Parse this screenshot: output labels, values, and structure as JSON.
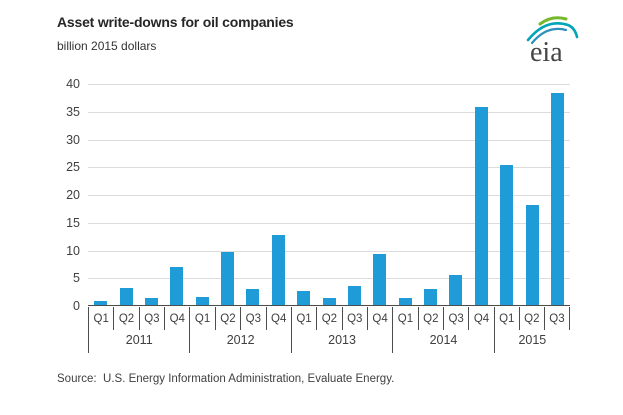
{
  "header": {
    "title": "Asset write-downs for oil companies",
    "subtitle": "billion 2015 dollars",
    "logo_text": "eia"
  },
  "chart_data": {
    "type": "bar",
    "title": "Asset write-downs for oil companies",
    "ylabel": "billion 2015 dollars",
    "xlabel": "",
    "ylim": [
      0,
      40
    ],
    "yticks": [
      0,
      5,
      10,
      15,
      20,
      25,
      30,
      35,
      40
    ],
    "grid": true,
    "legend_position": "none",
    "bar_color": "#1f9bd7",
    "groups": [
      {
        "year": "2011",
        "quarters": [
          "Q1",
          "Q2",
          "Q3",
          "Q4"
        ],
        "values": [
          0.8,
          3.1,
          1.3,
          6.8
        ]
      },
      {
        "year": "2012",
        "quarters": [
          "Q1",
          "Q2",
          "Q3",
          "Q4"
        ],
        "values": [
          1.4,
          9.5,
          2.9,
          12.7
        ]
      },
      {
        "year": "2013",
        "quarters": [
          "Q1",
          "Q2",
          "Q3",
          "Q4"
        ],
        "values": [
          2.5,
          1.3,
          3.5,
          9.2
        ]
      },
      {
        "year": "2014",
        "quarters": [
          "Q1",
          "Q2",
          "Q3",
          "Q4"
        ],
        "values": [
          1.3,
          2.9,
          5.4,
          35.7
        ]
      },
      {
        "year": "2015",
        "quarters": [
          "Q1",
          "Q2",
          "Q3"
        ],
        "values": [
          25.2,
          18.1,
          38.2
        ]
      }
    ]
  },
  "footer": {
    "source": "Source:  U.S. Energy Information Administration, Evaluate Energy."
  },
  "colors": {
    "bar": "#1f9bd7",
    "grid": "#dcdcdc",
    "axis": "#4d4d4d",
    "text": "#333333"
  }
}
